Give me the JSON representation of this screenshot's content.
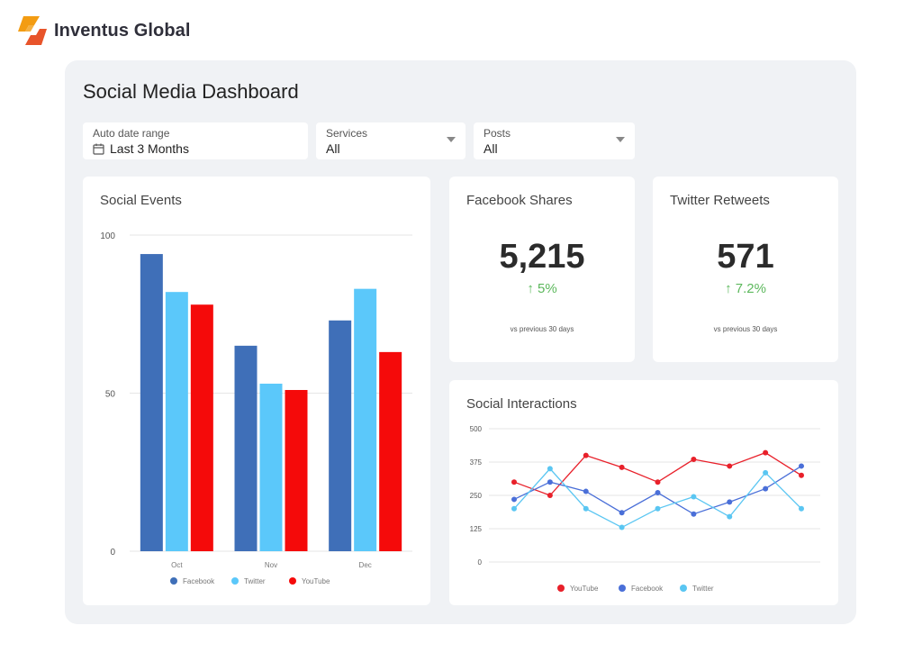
{
  "brand": {
    "name": "Inventus Global",
    "logo_colors": [
      "#f39c12",
      "#e8542a"
    ]
  },
  "dashboard": {
    "title": "Social Media Dashboard"
  },
  "filters": {
    "date": {
      "label": "Auto date range",
      "value": "Last 3 Months",
      "icon": "calendar-icon"
    },
    "services": {
      "label": "Services",
      "value": "All"
    },
    "posts": {
      "label": "Posts",
      "value": "All"
    }
  },
  "social_events": {
    "title": "Social Events"
  },
  "facebook_shares": {
    "title": "Facebook Shares",
    "value": "5,215",
    "change": "↑ 5%",
    "subtitle": "vs previous 30 days"
  },
  "twitter_retweets": {
    "title": "Twitter Retweets",
    "value": "571",
    "change": "↑ 7.2%",
    "subtitle": "vs previous 30 days"
  },
  "social_interactions": {
    "title": "Social Interactions"
  },
  "colors": {
    "facebook": "#3f6fb8",
    "twitter": "#5bc8fa",
    "youtube": "#f50a0a",
    "facebook_line": "#4a6fd8",
    "twitter_line": "#5ac6f2",
    "youtube_line": "#e8202a",
    "positive": "#5cb85c"
  },
  "chart_data": [
    {
      "type": "bar",
      "title": "Social Events",
      "categories": [
        "Oct",
        "Nov",
        "Dec"
      ],
      "series": [
        {
          "name": "Facebook",
          "values": [
            94,
            65,
            73
          ]
        },
        {
          "name": "Twitter",
          "values": [
            82,
            53,
            83
          ]
        },
        {
          "name": "YouTube",
          "values": [
            78,
            51,
            63
          ]
        }
      ],
      "yticks": [
        0,
        50,
        100
      ],
      "ylim": [
        0,
        100
      ],
      "legend": "bottom"
    },
    {
      "type": "line",
      "title": "Social Interactions",
      "x": [
        1,
        2,
        3,
        4,
        5,
        6,
        7,
        8,
        9
      ],
      "series": [
        {
          "name": "YouTube",
          "values": [
            300,
            250,
            400,
            355,
            300,
            385,
            360,
            410,
            325
          ]
        },
        {
          "name": "Facebook",
          "values": [
            235,
            300,
            265,
            185,
            260,
            180,
            225,
            275,
            360
          ]
        },
        {
          "name": "Twitter",
          "values": [
            200,
            350,
            200,
            130,
            200,
            245,
            170,
            335,
            200
          ]
        }
      ],
      "yticks": [
        0,
        125,
        250,
        375,
        500
      ],
      "ylim": [
        0,
        500
      ],
      "legend": "bottom"
    }
  ]
}
